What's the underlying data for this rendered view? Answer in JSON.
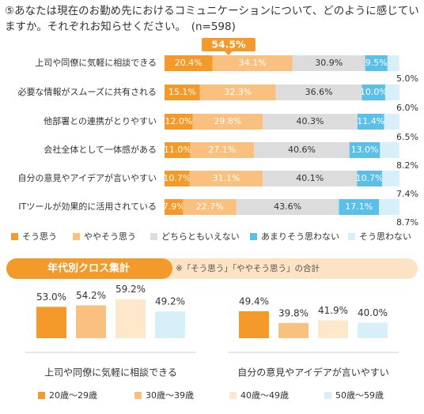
{
  "title": "⑤あなたは現在のお勤め先におけるコミュニケーションについて、どのように感じていますか。それぞれお知らせください。　(n=598)",
  "chart_data": [
    {
      "type": "stacked_bar_h",
      "annotation": "54.5%",
      "categories": [
        "上司や同僚に気軽に相談できる",
        "必要な情報がスムーズに共有される",
        "他部署との連携がとりやすい",
        "会社全体として一体感がある",
        "自分の意見やアイデアが言いやすい",
        "ITツールが効果的に活用されている"
      ],
      "series": [
        {
          "name": "そう思う",
          "color": "#f39a2b",
          "values": [
            20.4,
            15.1,
            12.0,
            11.0,
            10.7,
            7.9
          ],
          "value_labels": [
            "20.4%",
            "15.1%",
            "12.0%",
            "11.0%",
            "10.7%",
            "7.9%"
          ]
        },
        {
          "name": "ややそう思う",
          "color": "#f9c07f",
          "values": [
            34.1,
            32.3,
            29.8,
            27.1,
            31.1,
            22.7
          ],
          "value_labels": [
            "34.1%",
            "32.3%",
            "29.8%",
            "27.1%",
            "31.1%",
            "22.7%"
          ]
        },
        {
          "name": "どちらともいえない",
          "color": "#dcdcdc",
          "values": [
            30.9,
            36.6,
            40.3,
            40.6,
            40.1,
            43.6
          ],
          "value_labels": [
            "30.9%",
            "36.6%",
            "40.3%",
            "40.6%",
            "40.1%",
            "43.6%"
          ]
        },
        {
          "name": "あまりそう思わない",
          "color": "#5bc0e8",
          "values": [
            9.5,
            10.0,
            11.4,
            13.0,
            10.7,
            17.1
          ],
          "value_labels": [
            "9.5%",
            "10.0%",
            "11.4%",
            "13.0%",
            "10.7%",
            "17.1%"
          ]
        },
        {
          "name": "そう思わない",
          "color": "#d6eff9",
          "values": [
            5.0,
            6.0,
            6.5,
            8.2,
            7.4,
            8.7
          ],
          "value_labels": [
            "5.0%",
            "6.0%",
            "6.5%",
            "8.2%",
            "7.4%",
            "8.7%"
          ]
        }
      ]
    },
    {
      "type": "grouped_bar",
      "title": "年代別クロス集計",
      "subtitle": "※「そう思う」「ややそう思う」の合計",
      "categories": [
        "上司や同僚に気軽に相談できる",
        "自分の意見やアイデアが言いやすい"
      ],
      "series": [
        {
          "name": "20歳～29歳",
          "color": "#f39a2b",
          "values": [
            53.0,
            49.4
          ],
          "value_labels": [
            "53.0%",
            "49.4%"
          ]
        },
        {
          "name": "30歳～39歳",
          "color": "#f9c07f",
          "values": [
            54.2,
            39.8
          ],
          "value_labels": [
            "54.2%",
            "39.8%"
          ]
        },
        {
          "name": "40歳～49歳",
          "color": "#fde8cc",
          "values": [
            59.2,
            41.9
          ],
          "value_labels": [
            "59.2%",
            "41.9%"
          ]
        },
        {
          "name": "50歳～59歳",
          "color": "#d6eff9",
          "values": [
            49.2,
            40.0
          ],
          "value_labels": [
            "49.2%",
            "40.0%"
          ]
        }
      ]
    }
  ]
}
